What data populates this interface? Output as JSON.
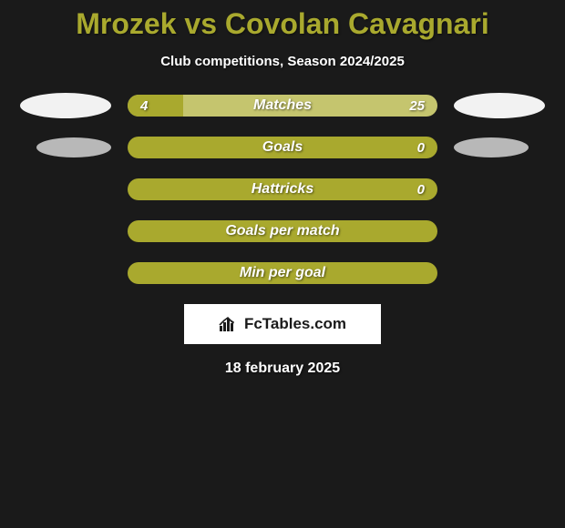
{
  "title": "Mrozek vs Covolan Cavagnari",
  "subtitle": "Club competitions, Season 2024/2025",
  "colors": {
    "bg": "#1a1a1a",
    "bar_light": "#c5c56e",
    "bar_dark": "#a9a92e",
    "oval_white": "#f2f2f2",
    "oval_gray": "#b8b8b8",
    "text_white": "#ffffff"
  },
  "stats": [
    {
      "label": "Matches",
      "left_value": "4",
      "right_value": "25",
      "left_pct": 18,
      "bar_bg": "#c5c56e",
      "left_fill": "#a9a92e",
      "show_left_oval": true,
      "show_right_oval": true,
      "left_oval_color": "#f2f2f2",
      "right_oval_color": "#f2f2f2",
      "left_oval_w": 100,
      "left_oval_h": 28,
      "right_oval_w": 100,
      "right_oval_h": 28
    },
    {
      "label": "Goals",
      "left_value": "",
      "right_value": "0",
      "left_pct": 0,
      "bar_bg": "#a9a92e",
      "left_fill": "#a9a92e",
      "show_left_oval": true,
      "show_right_oval": true,
      "left_oval_color": "#b8b8b8",
      "right_oval_color": "#b8b8b8",
      "left_oval_w": 82,
      "left_oval_h": 22,
      "right_oval_w": 82,
      "right_oval_h": 22
    },
    {
      "label": "Hattricks",
      "left_value": "",
      "right_value": "0",
      "left_pct": 0,
      "bar_bg": "#a9a92e",
      "left_fill": "#a9a92e",
      "show_left_oval": false,
      "show_right_oval": false
    },
    {
      "label": "Goals per match",
      "left_value": "",
      "right_value": "",
      "left_pct": 0,
      "bar_bg": "#a9a92e",
      "left_fill": "#a9a92e",
      "show_left_oval": false,
      "show_right_oval": false
    },
    {
      "label": "Min per goal",
      "left_value": "",
      "right_value": "",
      "left_pct": 0,
      "bar_bg": "#a9a92e",
      "left_fill": "#a9a92e",
      "show_left_oval": false,
      "show_right_oval": false
    }
  ],
  "logo_text": "FcTables.com",
  "date": "18 february 2025",
  "fontsize": {
    "title": 32,
    "subtitle": 15,
    "bar_label": 16,
    "bar_value": 15,
    "logo": 17,
    "date": 16
  }
}
